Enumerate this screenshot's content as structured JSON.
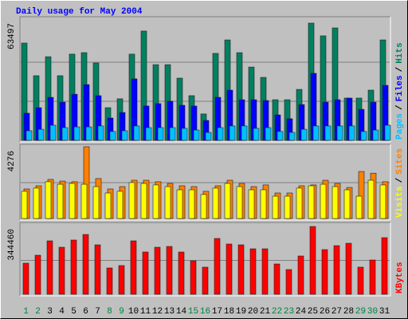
{
  "chart_data": [
    {
      "type": "bar",
      "title": "Daily usage for May 2004",
      "legend_separator": "/",
      "ylim": [
        0,
        63497
      ],
      "yticks": [
        63497
      ],
      "grid_divisions": 3,
      "series": [
        {
          "name": "Hits",
          "color": "#008060",
          "values": [
            52700,
            35000,
            45300,
            35000,
            46700,
            47500,
            41900,
            17700,
            22500,
            46700,
            59200,
            41000,
            41000,
            33700,
            24200,
            14300,
            47100,
            54400,
            47500,
            39700,
            34100,
            22000,
            22000,
            27600,
            63497,
            56600,
            60900,
            22900,
            22900,
            27200,
            54400
          ]
        },
        {
          "name": "Files",
          "color": "#0000ff",
          "values": [
            14700,
            17700,
            23300,
            20700,
            25000,
            30200,
            24200,
            12100,
            15100,
            33300,
            18600,
            19900,
            21200,
            19000,
            18600,
            10800,
            23300,
            27200,
            22000,
            22000,
            21600,
            13800,
            11700,
            19400,
            36300,
            20700,
            22000,
            22900,
            16800,
            20700,
            29800
          ]
        },
        {
          "name": "Pages",
          "color": "#00c0ff",
          "values": [
            5200,
            6000,
            8200,
            6900,
            7300,
            7300,
            7800,
            4800,
            5200,
            7800,
            6900,
            6900,
            6900,
            6500,
            5600,
            4300,
            6900,
            7800,
            7800,
            6500,
            6900,
            4800,
            4300,
            6000,
            7800,
            7800,
            7800,
            7800,
            4800,
            5600,
            8200
          ]
        }
      ]
    },
    {
      "type": "bar",
      "legend_separator": "/",
      "ylim": [
        0,
        4276
      ],
      "yticks": [
        4276
      ],
      "grid_divisions": 2,
      "series": [
        {
          "name": "Sites",
          "color": "#ff8000",
          "values": [
            1760,
            1950,
            2330,
            2230,
            2190,
            4276,
            2380,
            1760,
            1900,
            2280,
            2280,
            2190,
            2090,
            1950,
            1900,
            1620,
            1950,
            2280,
            2090,
            1900,
            2000,
            1520,
            1520,
            1950,
            2000,
            2280,
            2090,
            1850,
            2800,
            2700,
            2190
          ]
        },
        {
          "name": "Visits",
          "color": "#ffff00",
          "values": [
            1620,
            1810,
            2190,
            2040,
            2090,
            2040,
            1900,
            1520,
            1620,
            2140,
            2090,
            2000,
            1900,
            1710,
            1710,
            1430,
            1810,
            2090,
            1900,
            1710,
            1710,
            1330,
            1330,
            1810,
            1950,
            2040,
            1900,
            1710,
            1330,
            2280,
            2000
          ]
        }
      ]
    },
    {
      "type": "bar",
      "ylim": [
        0,
        344460
      ],
      "yticks": [
        344460
      ],
      "grid_divisions": 2,
      "categories": [
        "1",
        "2",
        "3",
        "4",
        "5",
        "6",
        "7",
        "8",
        "9",
        "10",
        "11",
        "12",
        "13",
        "14",
        "15",
        "16",
        "17",
        "18",
        "19",
        "20",
        "21",
        "22",
        "23",
        "24",
        "25",
        "26",
        "27",
        "28",
        "29",
        "30",
        "31"
      ],
      "label_colors": [
        "#008040",
        "#008040",
        "#000000",
        "#000000",
        "#000000",
        "#000000",
        "#000000",
        "#008040",
        "#008040",
        "#000000",
        "#000000",
        "#000000",
        "#000000",
        "#000000",
        "#008040",
        "#008040",
        "#000000",
        "#000000",
        "#000000",
        "#000000",
        "#000000",
        "#008040",
        "#008040",
        "#000000",
        "#000000",
        "#000000",
        "#000000",
        "#000000",
        "#008040",
        "#008040",
        "#000000"
      ],
      "series": [
        {
          "name": "KBytes",
          "color": "#ff0000",
          "values": [
            158000,
            198500,
            271500,
            239000,
            275600,
            303900,
            251200,
            133700,
            145900,
            271500,
            214800,
            239000,
            243100,
            214800,
            170200,
            137800,
            283600,
            255300,
            251200,
            231000,
            231000,
            154000,
            125600,
            194500,
            344460,
            226900,
            247200,
            259300,
            137800,
            174200,
            287700
          ]
        }
      ]
    }
  ]
}
